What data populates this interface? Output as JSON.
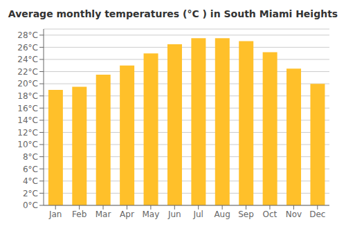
{
  "chart_data": {
    "type": "bar",
    "title": "Average monthly temperatures (°C ) in South Miami Heights",
    "categories": [
      "Jan",
      "Feb",
      "Mar",
      "Apr",
      "May",
      "Jun",
      "Jul",
      "Aug",
      "Sep",
      "Oct",
      "Nov",
      "Dec"
    ],
    "values": [
      19.0,
      19.5,
      21.5,
      23.0,
      25.0,
      26.5,
      27.5,
      27.5,
      27.0,
      25.2,
      22.5,
      20.0
    ],
    "color": "#FFC02A",
    "ylim": [
      0,
      29
    ],
    "yticks": [
      {
        "value": 0,
        "label": "0°C"
      },
      {
        "value": 2,
        "label": "2°C"
      },
      {
        "value": 4,
        "label": "4°C"
      },
      {
        "value": 6,
        "label": "6°C"
      },
      {
        "value": 8,
        "label": "8°C"
      },
      {
        "value": 10,
        "label": "10°C"
      },
      {
        "value": 12,
        "label": "12°C"
      },
      {
        "value": 14,
        "label": "14°C"
      },
      {
        "value": 16,
        "label": "16°C"
      },
      {
        "value": 18,
        "label": "18°C"
      },
      {
        "value": 20,
        "label": "20°C"
      },
      {
        "value": 22,
        "label": "22°C"
      },
      {
        "value": 24,
        "label": "24°C"
      },
      {
        "value": 26,
        "label": "26°C"
      },
      {
        "value": 28,
        "label": "28°C"
      }
    ],
    "grid": true
  }
}
